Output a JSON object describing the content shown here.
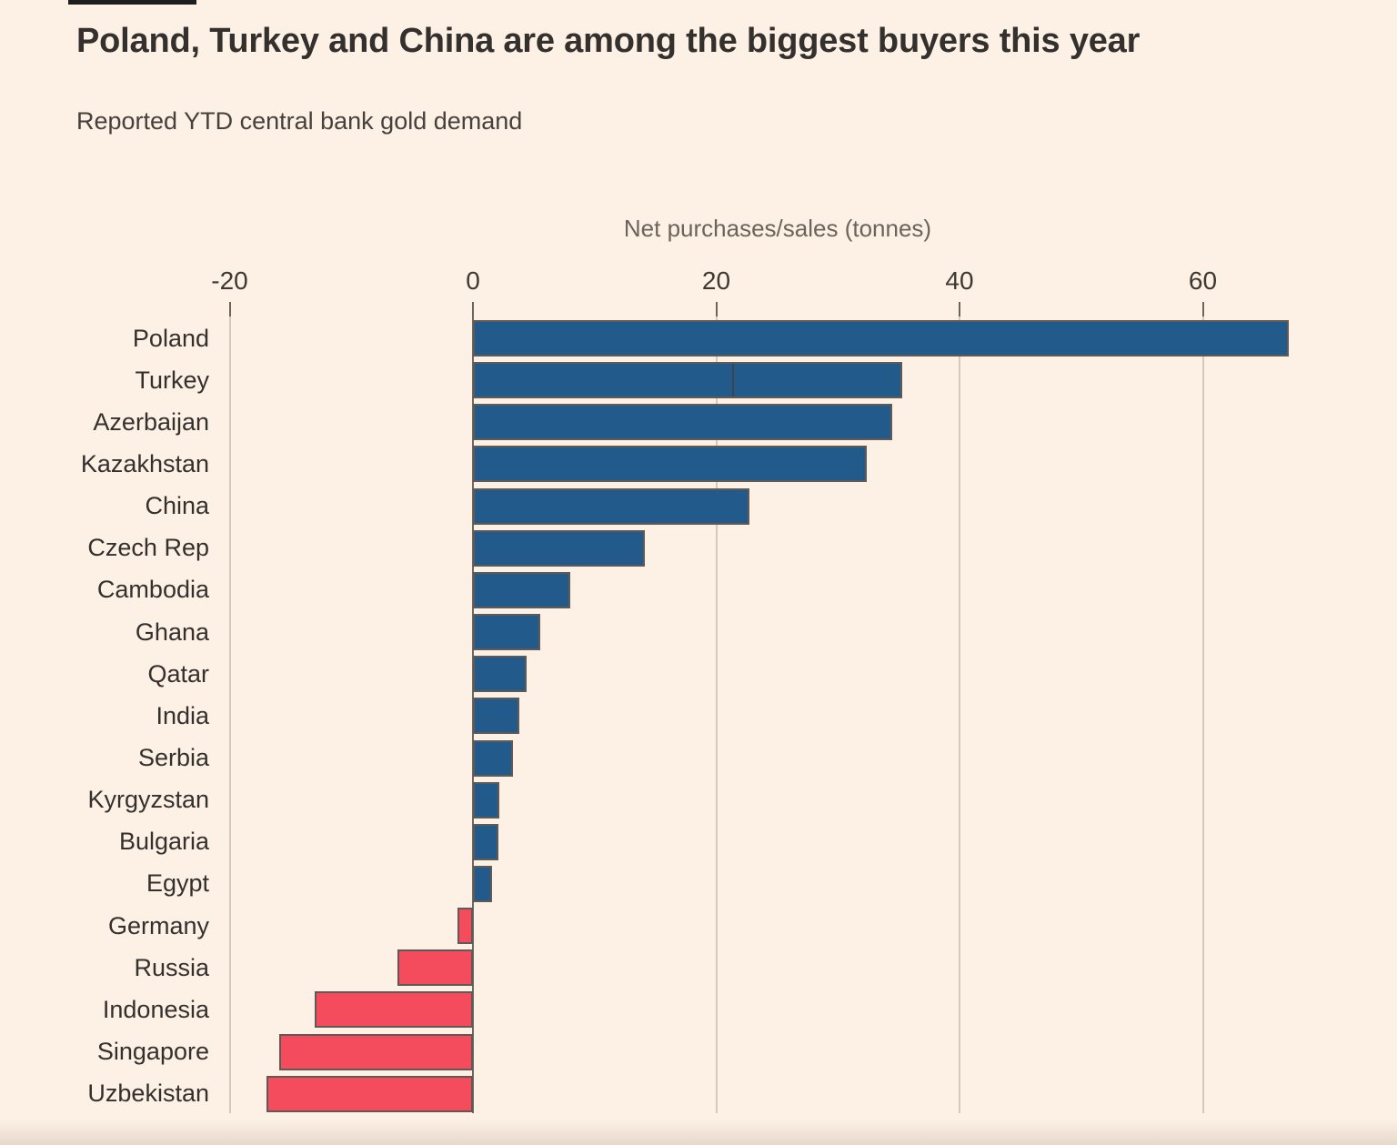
{
  "page": {
    "background_color": "#fdf0e4",
    "top_strip_color": "#1e1e1e"
  },
  "header": {
    "title": "Poland, Turkey and China are among the biggest buyers this year",
    "subtitle": "Reported YTD central bank gold demand"
  },
  "chart_data": {
    "type": "bar",
    "orientation": "horizontal",
    "title": "Poland, Turkey and China are among the biggest buyers this year",
    "subtitle": "Reported YTD central bank gold demand",
    "xlabel": "Net purchases/sales (tonnes)",
    "xlim": [
      -20,
      68
    ],
    "xticks": [
      -20,
      0,
      20,
      40,
      60
    ],
    "grid": true,
    "legend": "none",
    "categories": [
      "Poland",
      "Turkey",
      "Azerbaijan",
      "Kazakhstan",
      "China",
      "Czech Rep",
      "Cambodia",
      "Ghana",
      "Qatar",
      "India",
      "Serbia",
      "Kyrgyzstan",
      "Bulgaria",
      "Egypt",
      "Germany",
      "Russia",
      "Indonesia",
      "Singapore",
      "Uzbekistan"
    ],
    "values": [
      67.1,
      35.3,
      34.5,
      32.4,
      22.7,
      14.1,
      8.0,
      5.5,
      4.4,
      3.8,
      3.3,
      2.2,
      2.1,
      1.6,
      -1.3,
      -6.2,
      -13.0,
      -15.9,
      -17.0
    ],
    "positive_color": "#215a8b",
    "negative_color": "#f44c5c",
    "bar_border_color": "#5f5a56",
    "hover_marker": {
      "category": "Turkey",
      "x": 21.4
    }
  }
}
